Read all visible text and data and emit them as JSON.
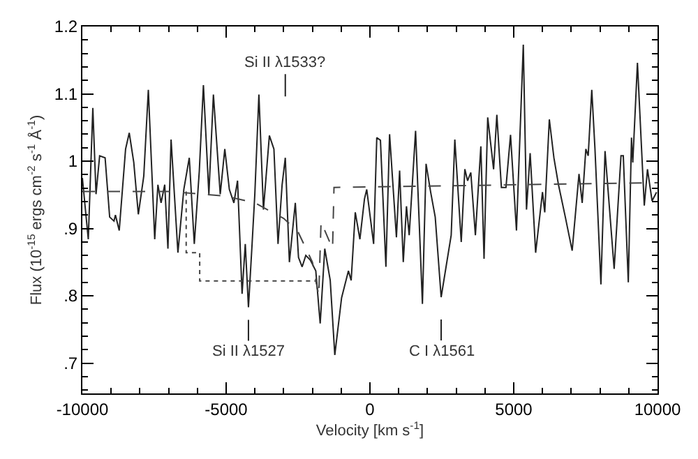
{
  "chart_data": {
    "type": "line",
    "xlabel": "Velocity [km s$^{-1}$]",
    "ylabel": "Flux (10$^{-15}$ ergs cm$^{-2}$ s$^{-1}$ Å$^{-1}$)",
    "xlim": [
      -10000,
      10000
    ],
    "ylim": [
      0.655,
      1.2
    ],
    "xticks": [
      -10000,
      -5000,
      0,
      5000,
      10000
    ],
    "yticks": [
      {
        "value": 0.7,
        "label": ".7"
      },
      {
        "value": 0.8,
        "label": ".8"
      },
      {
        "value": 0.9,
        "label": ".9"
      },
      1,
      1.1,
      1.2
    ],
    "marker": "none",
    "series": [
      {
        "color": "#222222",
        "line_style": "solid",
        "x": [
          -10000,
          -9794,
          -9636,
          -9525,
          -9399,
          -9209,
          -9051,
          -8900,
          -8850,
          -8718,
          -8497,
          -8370,
          -8212,
          -8054,
          -7864,
          -7706,
          -7484,
          -7373,
          -7263,
          -7136,
          -7025,
          -6915,
          -6677,
          -6472,
          -6282,
          -6108,
          -5934,
          -5791,
          -5601,
          -5443,
          -5206,
          -5047,
          -4889,
          -4731,
          -4604,
          -4446,
          -4335,
          -4225,
          -4098,
          -4003,
          -3861,
          -3703,
          -3497,
          -3339,
          -3196,
          -3054,
          -2943,
          -2801,
          -2595,
          -2484,
          -2358,
          -2230,
          -2073,
          -1883,
          -1730,
          -1571,
          -1381,
          -1222,
          -986,
          -748,
          -653,
          -510,
          -349,
          -190,
          -111,
          128,
          238,
          365,
          556,
          683,
          921,
          1032,
          1159,
          1270,
          1365,
          1587,
          1825,
          1952,
          2111,
          2270,
          2476,
          2825,
          2952,
          3175,
          3300,
          3395,
          3508,
          3667,
          3857,
          3968,
          4095,
          4300,
          4413,
          4571,
          4730,
          4889,
          5095,
          5333,
          5444,
          5571,
          5762,
          6000,
          6079,
          6238,
          6397,
          6556,
          6794,
          7032,
          7270,
          7381,
          7508,
          7590,
          7714,
          7825,
          8032,
          8175,
          8492,
          8730,
          8810,
          8984,
          9095,
          9140,
          9302,
          9540,
          9651,
          9810,
          9968
        ],
        "values": [
          0.975,
          0.884,
          1.079,
          0.951,
          1.008,
          1.005,
          0.917,
          0.911,
          0.92,
          0.897,
          1.018,
          1.042,
          0.998,
          0.921,
          0.978,
          1.106,
          0.884,
          0.965,
          0.938,
          0.965,
          0.87,
          1.032,
          0.864,
          0.958,
          1.005,
          0.877,
          0.985,
          1.113,
          0.951,
          1.099,
          0.951,
          1.018,
          0.958,
          0.938,
          0.971,
          0.803,
          0.877,
          0.783,
          0.877,
          0.951,
          1.099,
          0.928,
          1.038,
          1.018,
          0.877,
          0.965,
          1.005,
          0.85,
          0.938,
          0.857,
          0.843,
          0.86,
          0.853,
          0.837,
          0.759,
          0.87,
          0.823,
          0.712,
          0.797,
          0.837,
          0.823,
          0.924,
          0.884,
          0.944,
          0.958,
          0.877,
          1.035,
          1.031,
          0.843,
          1.04,
          0.887,
          0.986,
          0.85,
          0.933,
          0.89,
          1.045,
          0.788,
          0.996,
          0.954,
          0.917,
          0.798,
          0.89,
          1.032,
          0.88,
          0.988,
          0.971,
          0.983,
          0.89,
          1.022,
          0.855,
          1.065,
          0.988,
          1.069,
          0.961,
          0.961,
          1.039,
          0.897,
          1.173,
          0.928,
          1.012,
          0.864,
          0.954,
          0.924,
          1.062,
          1.005,
          0.965,
          0.917,
          0.867,
          0.981,
          0.938,
          1.018,
          1.008,
          1.106,
          1.018,
          0.817,
          1.015,
          0.84,
          1.008,
          1.008,
          0.82,
          1.035,
          0.998,
          1.146,
          0.934,
          0.988,
          0.941,
          0.954
        ]
      },
      {
        "color": "#444444",
        "line_style": "dashed",
        "x": [
          -10000,
          -7000,
          -5000,
          -4000,
          -3000,
          -2500,
          -2000,
          -1780,
          -1700,
          -1300,
          -1250,
          10000
        ],
        "values": [
          0.955,
          0.955,
          0.948,
          0.938,
          0.915,
          0.895,
          0.85,
          0.8,
          0.91,
          0.87,
          0.961,
          0.968
        ]
      },
      {
        "color": "#444444",
        "line_style": "dotted",
        "x": [
          -6390,
          -6390,
          -5920,
          -5920,
          -1880,
          -1780
        ],
        "values": [
          0.955,
          0.864,
          0.864,
          0.822,
          0.822,
          0.8
        ]
      }
    ],
    "annotations": [
      {
        "text": "Si II λ1533?",
        "x": -2943,
        "y": 1.005
      },
      {
        "text": "Si II λ1527",
        "x": -4225,
        "y": 0.783
      },
      {
        "text": "C I λ1561",
        "x": 2476,
        "y": 0.798
      }
    ]
  }
}
